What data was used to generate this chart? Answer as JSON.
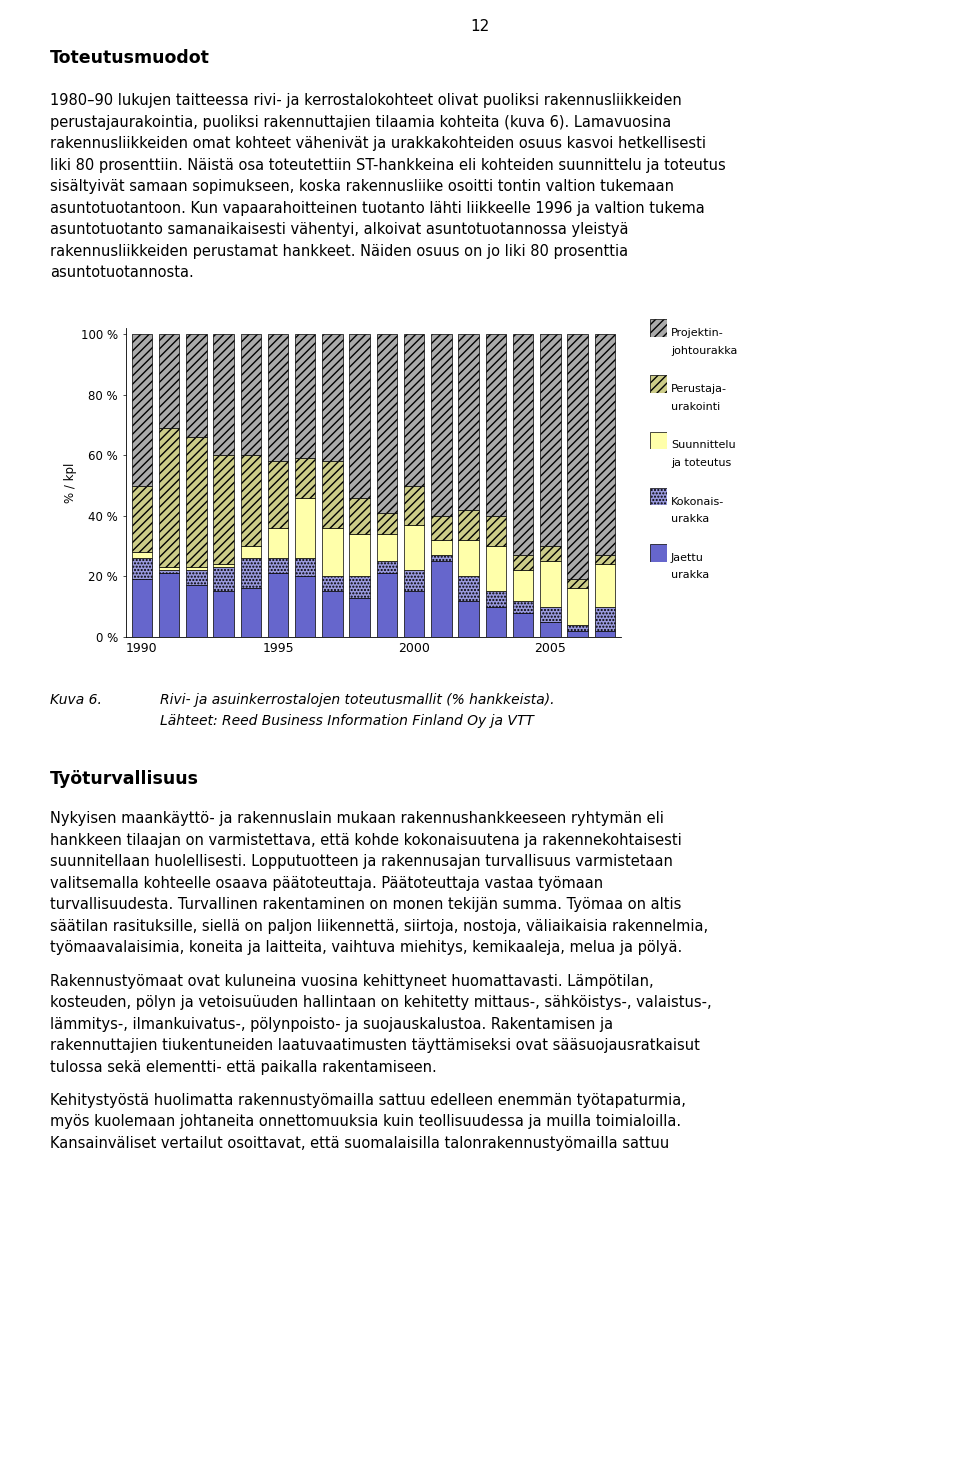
{
  "years": [
    1990,
    1991,
    1992,
    1993,
    1994,
    1995,
    1996,
    1997,
    1998,
    1999,
    2000,
    2001,
    2002,
    2003,
    2004,
    2005,
    2006,
    2007
  ],
  "jaettu_urakka": [
    19,
    21,
    17,
    15,
    16,
    21,
    20,
    15,
    13,
    21,
    15,
    25,
    12,
    10,
    8,
    5,
    2,
    2
  ],
  "kokonais_urakka": [
    7,
    1,
    5,
    8,
    10,
    5,
    6,
    5,
    7,
    4,
    7,
    2,
    8,
    5,
    4,
    5,
    2,
    8
  ],
  "suunnittelu_toteutus": [
    2,
    1,
    1,
    1,
    4,
    10,
    20,
    16,
    14,
    9,
    15,
    5,
    12,
    15,
    10,
    15,
    12,
    14
  ],
  "perustaja_urakointi": [
    22,
    46,
    43,
    36,
    30,
    22,
    13,
    22,
    12,
    7,
    13,
    8,
    10,
    10,
    5,
    5,
    3,
    3
  ],
  "projektin_johtourakka": [
    50,
    31,
    34,
    40,
    40,
    42,
    41,
    42,
    54,
    59,
    50,
    60,
    58,
    60,
    73,
    70,
    81,
    73
  ],
  "bar_width": 0.75,
  "colors": {
    "jaettu_urakka": "#6666cc",
    "kokonais_urakka": "#9999dd",
    "suunnittelu_toteutus": "#ffffaa",
    "perustaja_urakointi": "#cccc88",
    "projektin_johtourakka": "#aaaaaa"
  },
  "page_number": "12",
  "title_text": "Toteutusmuodot",
  "para1_line1": "1980–90 lukujen taitteessa rivi- ja kerrostalokohteet olivat puoliksi rakennusliikkeiden",
  "para1_line2": "perustajaurakointia, puoliksi rakennuttajien tilaamia kohteita (kuva 6). Lamavuosina",
  "para1_line3": "rakennusliikkeiden omat kohteet vähenivät ja urakkakohteiden osuus kasvoi hetkellisesti",
  "para1_line4": "liki 80 prosenttiin. Näistä osa toteutettiin ST-hankkeina eli kohteiden suunnittelu ja toteutus",
  "para1_line5": "sisältyivät samaan sopimukseen, koska rakennusliike osoitti tontin valtion tukemaan",
  "para1_line6": "asuntotuotantoon. Kun vapaarahoitteinen tuotanto lähti liikkeelle 1996 ja valtion tukema",
  "para1_line7": "asuntotuotanto samanaikaisesti vähentyi, alkoivat asuntotuotannossa yleistyä",
  "para1_line8": "rakennusliikkeiden perustamat hankkeet. Näiden osuus on jo liki 80 prosenttia",
  "para1_line9": "asuntotuotannosta.",
  "caption_label": "Kuva 6.",
  "caption_text1": "Rivi- ja asuinkerrostalojen toteutusmallit (% hankkeista).",
  "caption_text2": "Lähteet: Reed Business Information Finland Oy ja VTT",
  "title2": "Työturvallisuus",
  "para2_line1": "Nykyisen maankäyttö- ja rakennuslain mukaan rakennushankkeeseen ryhtymän eli",
  "para2_line2": "hankkeen tilaajan on varmistettava, että kohde kokonaisuutena ja rakennekohtaisesti",
  "para2_line3": "suunnitellaan huolellisesti. Lopputuotteen ja rakennusajan turvallisuus varmistetaan",
  "para2_line4": "valitsemalla kohteelle osaava päätoteuttaja. Päätoteuttaja vastaa työmaan",
  "para2_line5": "turvallisuudesta. Turvallinen rakentaminen on monen tekijän summa. Työmaa on altis",
  "para2_line6": "säätilan rasituksille, siellä on paljon liikennettä, siirtoja, nostoja, väliaikaisia rakennelmia,",
  "para2_line7": "työmaavalaisimia, koneita ja laitteita, vaihtuva miehitys, kemikaaleja, melua ja pölyä.",
  "para3_line1": "Rakennustyömaat ovat kuluneina vuosina kehittyneet huomattavasti. Lämpötilan,",
  "para3_line2": "kosteuden, pölyn ja vetoisuüuden hallintaan on kehitetty mittaus-, sähköistys-, valaistus-,",
  "para3_line3": "lämmitys-, ilmankuivatus-, pölynpoisto- ja suojauskalustoa. Rakentamisen ja",
  "para3_line4": "rakennuttajien tiukentuneiden laatuvaatimusten täyttämiseksi ovat sääsuojausratkaisut",
  "para3_line5": "tulossa sekä elementti- että paikalla rakentamiseen.",
  "para4_line1": "Kehitystyöstä huolimatta rakennustyömailla sattuu edelleen enemmän työtapaturmia,",
  "para4_line2": "myös kuolemaan johtaneita onnettomuuksia kuin teollisuudessa ja muilla toimialoilla.",
  "para4_line3": "Kansainväliset vertailut osoittavat, että suomalaisilla talonrakennustyömailla sattuu",
  "yticks": [
    0,
    20,
    40,
    60,
    80,
    100
  ],
  "ytick_labels": [
    "0 %",
    "20 %",
    "40 %",
    "60 %",
    "80 %",
    "100 %"
  ],
  "xtick_labels": [
    "1990",
    "1995",
    "2000",
    "2005"
  ],
  "ylabel": "% / kpl"
}
